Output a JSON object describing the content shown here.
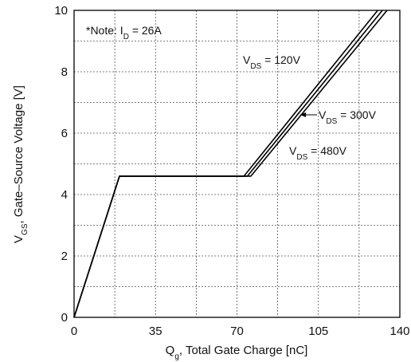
{
  "chart_data": {
    "type": "line",
    "xlabel": "Qg, Total Gate Charge [nC]",
    "ylabel": "VGS, Gate-Source Voltage [V]",
    "xlim": [
      0,
      140
    ],
    "ylim": [
      0,
      10
    ],
    "x_ticks": [
      0,
      35,
      70,
      105,
      140
    ],
    "y_ticks": [
      0,
      2,
      4,
      6,
      8,
      10
    ],
    "grid": true,
    "note": "*Note: ID = 26A",
    "series": [
      {
        "name": "VDS = 120V",
        "x": [
          0,
          19.5,
          73,
          130.5
        ],
        "y": [
          0,
          4.6,
          4.6,
          10
        ]
      },
      {
        "name": "VDS = 300V",
        "x": [
          0,
          19.5,
          74.5,
          132.5
        ],
        "y": [
          0,
          4.6,
          4.6,
          10
        ]
      },
      {
        "name": "VDS = 480V",
        "x": [
          0,
          19.5,
          76,
          134.5
        ],
        "y": [
          0,
          4.6,
          4.6,
          10
        ]
      }
    ]
  }
}
